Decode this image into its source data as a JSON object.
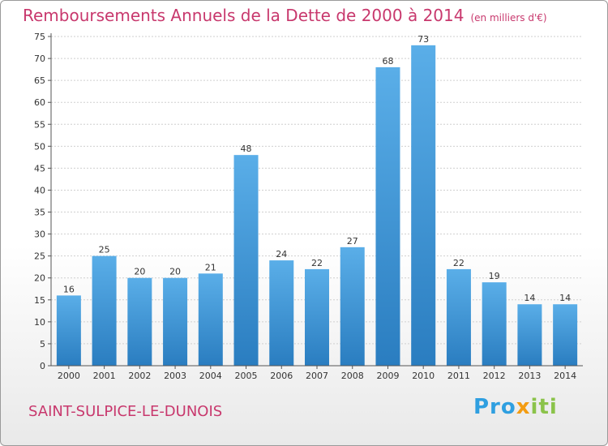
{
  "title": "Remboursements Annuels de la Dette de 2000 à 2014",
  "unit": "(en milliers d'€)",
  "town": "SAINT-SULPICE-LE-DUNOIS",
  "logo": [
    "Pro",
    "x",
    "iti"
  ],
  "colors": {
    "title": "#c8386d",
    "bar_light": "#5aaee8",
    "bar_dark": "#2a7dc0",
    "grid": "#cfcfcf"
  },
  "chart_data": {
    "type": "bar",
    "categories": [
      "2000",
      "2001",
      "2002",
      "2003",
      "2004",
      "2005",
      "2006",
      "2007",
      "2008",
      "2009",
      "2010",
      "2011",
      "2012",
      "2013",
      "2014"
    ],
    "values": [
      16,
      25,
      20,
      20,
      21,
      48,
      24,
      22,
      27,
      68,
      73,
      22,
      19,
      14,
      14
    ],
    "title": "Remboursements Annuels de la Dette de 2000 à 2014",
    "ylim": [
      0,
      75
    ],
    "yticks": [
      0,
      5,
      10,
      15,
      20,
      25,
      30,
      35,
      40,
      45,
      50,
      55,
      60,
      65,
      70,
      75
    ],
    "grid": true
  }
}
